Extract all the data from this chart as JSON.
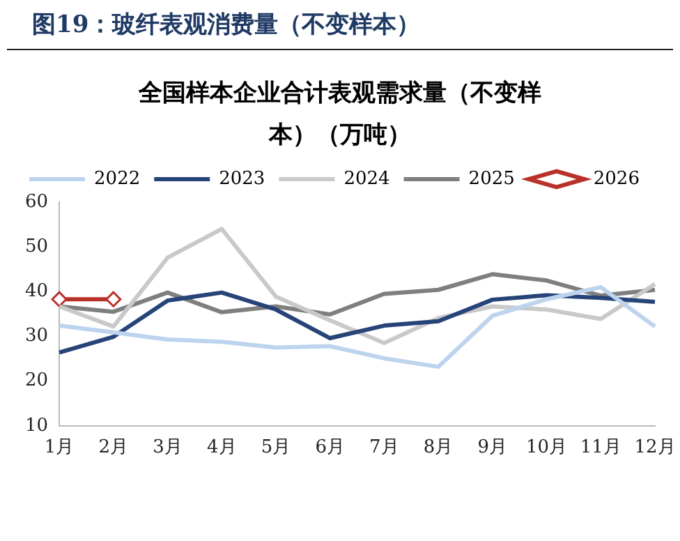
{
  "chart_data": {
    "type": "line",
    "title": "图19：玻纤表观消费量（不变样本）",
    "subtitle": "全国样本企业合计表观需求量（不变样本）（万吨）",
    "categories": [
      "1月",
      "2月",
      "3月",
      "4月",
      "5月",
      "6月",
      "7月",
      "8月",
      "9月",
      "10月",
      "11月",
      "12月"
    ],
    "series": [
      {
        "name": "2022",
        "color": "#bdd3ee",
        "values": [
          32.4,
          30.9,
          29.3,
          28.8,
          27.5,
          27.8,
          25.1,
          23.2,
          34.6,
          38.3,
          41,
          32.2
        ]
      },
      {
        "name": "2023",
        "color": "#264478",
        "values": [
          26.4,
          29.9,
          38,
          39.8,
          36,
          29.6,
          32.4,
          33.4,
          38.2,
          39.2,
          38.6,
          37.7
        ]
      },
      {
        "name": "2024",
        "color": "#c9c9c9",
        "values": [
          36.7,
          32.2,
          47.6,
          54,
          38.9,
          33.6,
          28.5,
          34.1,
          36.7,
          36,
          33.9,
          41.7
        ]
      },
      {
        "name": "2025",
        "color": "#7f7f7f",
        "values": [
          36.7,
          35.5,
          39.8,
          35.4,
          36.7,
          34.9,
          39.5,
          40.4,
          43.9,
          42.5,
          39.1,
          40.4
        ]
      },
      {
        "name": "2026",
        "color": "#b8322a",
        "marker": "diamond",
        "values": [
          38.3,
          38.3,
          null,
          null,
          null,
          null,
          null,
          null,
          null,
          null,
          null,
          null
        ]
      }
    ],
    "ylim": [
      10,
      60
    ],
    "yticks": [
      10,
      20,
      30,
      40,
      50,
      60
    ],
    "grid": false,
    "legend": "top",
    "marker": "none",
    "line_style": "solid"
  }
}
